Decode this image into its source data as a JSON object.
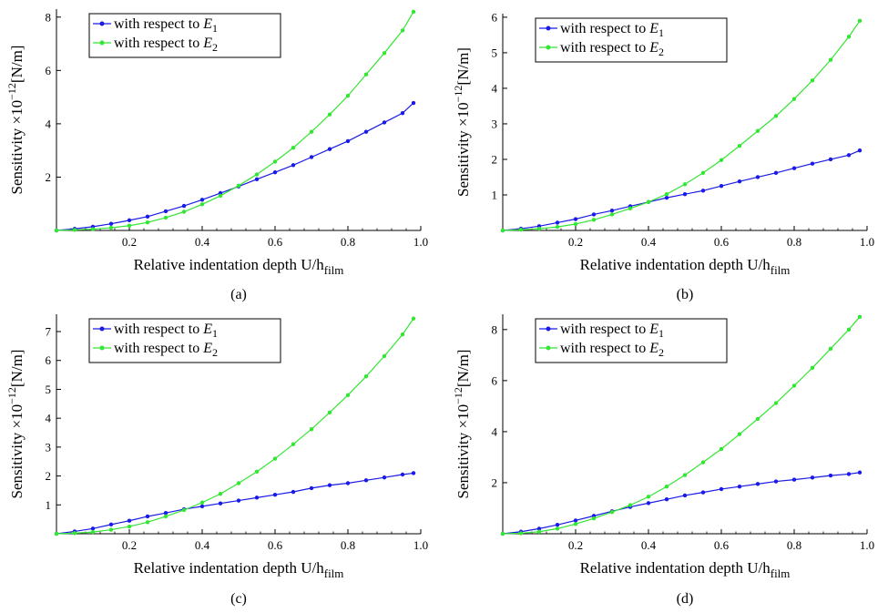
{
  "chart_data": [
    {
      "type": "line",
      "panel": "a",
      "caption": "(a)",
      "xlabel_main": "Relative indentation depth U/h",
      "xlabel_sub": "film",
      "ylabel_pre": "Sensitivity  ×10",
      "ylabel_exp": "−12",
      "ylabel_unit": "[N/m]",
      "xlim": [
        0,
        1.0
      ],
      "ylim": [
        0,
        8.3
      ],
      "xticks": [
        0.2,
        0.4,
        0.6,
        0.8,
        1.0
      ],
      "xtick_labels": [
        "0.2",
        "0.4",
        "0.6",
        "0.8",
        "1.0"
      ],
      "yticks": [
        2,
        4,
        6,
        8
      ],
      "ytick_labels": [
        "2",
        "4",
        "6",
        "8"
      ],
      "legend_position": "top-left",
      "x": [
        0.0,
        0.05,
        0.1,
        0.15,
        0.2,
        0.25,
        0.3,
        0.35,
        0.4,
        0.45,
        0.5,
        0.55,
        0.6,
        0.65,
        0.7,
        0.75,
        0.8,
        0.85,
        0.9,
        0.95,
        0.98
      ],
      "series": [
        {
          "name_main": "with respect to ",
          "name_var": "E",
          "name_sub": "1",
          "color": "#1a1ae6",
          "values": [
            0.0,
            0.06,
            0.14,
            0.25,
            0.38,
            0.52,
            0.72,
            0.92,
            1.15,
            1.4,
            1.65,
            1.92,
            2.18,
            2.45,
            2.75,
            3.05,
            3.35,
            3.7,
            4.05,
            4.4,
            4.78
          ]
        },
        {
          "name_main": "with respect to ",
          "name_var": "E",
          "name_sub": "2",
          "color": "#33e633",
          "values": [
            0.0,
            0.02,
            0.05,
            0.1,
            0.18,
            0.3,
            0.48,
            0.7,
            0.98,
            1.3,
            1.68,
            2.1,
            2.58,
            3.1,
            3.7,
            4.35,
            5.05,
            5.85,
            6.65,
            7.5,
            8.2
          ]
        }
      ]
    },
    {
      "type": "line",
      "panel": "b",
      "caption": "(b)",
      "xlabel_main": "Relative indentation depth U/h",
      "xlabel_sub": "film",
      "ylabel_pre": "Sensitivity  ×10",
      "ylabel_exp": "−12",
      "ylabel_unit": "[N/m]",
      "xlim": [
        0,
        1.0
      ],
      "ylim": [
        0,
        6.1
      ],
      "xticks": [
        0.2,
        0.4,
        0.6,
        0.8,
        1.0
      ],
      "xtick_labels": [
        "0.2",
        "0.4",
        "0.6",
        "0.8",
        "1.0"
      ],
      "yticks": [
        1,
        2,
        3,
        4,
        5,
        6
      ],
      "ytick_labels": [
        "1",
        "2",
        "3",
        "4",
        "5",
        "6"
      ],
      "legend_position": "top-left",
      "x": [
        0.0,
        0.05,
        0.1,
        0.15,
        0.2,
        0.25,
        0.3,
        0.35,
        0.4,
        0.45,
        0.5,
        0.55,
        0.6,
        0.65,
        0.7,
        0.75,
        0.8,
        0.85,
        0.9,
        0.95,
        0.98
      ],
      "series": [
        {
          "name_main": "with respect to ",
          "name_var": "E",
          "name_sub": "1",
          "color": "#1a1ae6",
          "values": [
            0.0,
            0.05,
            0.12,
            0.22,
            0.32,
            0.45,
            0.56,
            0.68,
            0.8,
            0.92,
            1.02,
            1.12,
            1.25,
            1.38,
            1.5,
            1.62,
            1.75,
            1.88,
            2.0,
            2.12,
            2.25
          ]
        },
        {
          "name_main": "with respect to ",
          "name_var": "E",
          "name_sub": "2",
          "color": "#33e633",
          "values": [
            0.0,
            0.02,
            0.05,
            0.1,
            0.18,
            0.3,
            0.45,
            0.62,
            0.8,
            1.02,
            1.3,
            1.62,
            1.98,
            2.38,
            2.8,
            3.22,
            3.7,
            4.22,
            4.8,
            5.45,
            5.9
          ]
        }
      ]
    },
    {
      "type": "line",
      "panel": "c",
      "caption": "(c)",
      "xlabel_main": "Relative indentation depth U/h",
      "xlabel_sub": "film",
      "ylabel_pre": "Sensitivity  ×10",
      "ylabel_exp": "−12",
      "ylabel_unit": "[N/m]",
      "xlim": [
        0,
        1.0
      ],
      "ylim": [
        0,
        7.6
      ],
      "xticks": [
        0.2,
        0.4,
        0.6,
        0.8,
        1.0
      ],
      "xtick_labels": [
        "0.2",
        "0.4",
        "0.6",
        "0.8",
        "1.0"
      ],
      "yticks": [
        1,
        2,
        3,
        4,
        5,
        6,
        7
      ],
      "ytick_labels": [
        "1",
        "2",
        "3",
        "4",
        "5",
        "6",
        "7"
      ],
      "legend_position": "top-left",
      "x": [
        0.0,
        0.05,
        0.1,
        0.15,
        0.2,
        0.25,
        0.3,
        0.35,
        0.4,
        0.45,
        0.5,
        0.55,
        0.6,
        0.65,
        0.7,
        0.75,
        0.8,
        0.85,
        0.9,
        0.95,
        0.98
      ],
      "series": [
        {
          "name_main": "with respect to ",
          "name_var": "E",
          "name_sub": "1",
          "color": "#1a1ae6",
          "values": [
            0.0,
            0.08,
            0.18,
            0.32,
            0.45,
            0.6,
            0.72,
            0.85,
            0.95,
            1.05,
            1.15,
            1.25,
            1.35,
            1.45,
            1.58,
            1.68,
            1.75,
            1.85,
            1.95,
            2.05,
            2.1
          ]
        },
        {
          "name_main": "with respect to ",
          "name_var": "E",
          "name_sub": "2",
          "color": "#33e633",
          "values": [
            0.0,
            0.02,
            0.06,
            0.14,
            0.25,
            0.4,
            0.6,
            0.82,
            1.08,
            1.38,
            1.75,
            2.15,
            2.6,
            3.1,
            3.62,
            4.2,
            4.8,
            5.45,
            6.15,
            6.9,
            7.45
          ]
        }
      ]
    },
    {
      "type": "line",
      "panel": "d",
      "caption": "(d)",
      "xlabel_main": "Relative indentation depth U/h",
      "xlabel_sub": "film",
      "ylabel_pre": "Sensitivity  ×10",
      "ylabel_exp": "−12",
      "ylabel_unit": "[N/m]",
      "xlim": [
        0,
        1.0
      ],
      "ylim": [
        0,
        8.6
      ],
      "xticks": [
        0.2,
        0.4,
        0.6,
        0.8,
        1.0
      ],
      "xtick_labels": [
        "0.2",
        "0.4",
        "0.6",
        "0.8",
        "1.0"
      ],
      "yticks": [
        2,
        4,
        6,
        8
      ],
      "ytick_labels": [
        "2",
        "4",
        "6",
        "8"
      ],
      "legend_position": "top-left",
      "x": [
        0.0,
        0.05,
        0.1,
        0.15,
        0.2,
        0.25,
        0.3,
        0.35,
        0.4,
        0.45,
        0.5,
        0.55,
        0.6,
        0.65,
        0.7,
        0.75,
        0.8,
        0.85,
        0.9,
        0.95,
        0.98
      ],
      "series": [
        {
          "name_main": "with respect to ",
          "name_var": "E",
          "name_sub": "1",
          "color": "#1a1ae6",
          "values": [
            0.0,
            0.08,
            0.2,
            0.35,
            0.52,
            0.7,
            0.88,
            1.05,
            1.2,
            1.35,
            1.5,
            1.62,
            1.75,
            1.85,
            1.95,
            2.05,
            2.12,
            2.2,
            2.28,
            2.34,
            2.4
          ]
        },
        {
          "name_main": "with respect to ",
          "name_var": "E",
          "name_sub": "2",
          "color": "#33e633",
          "values": [
            0.0,
            0.02,
            0.08,
            0.2,
            0.38,
            0.6,
            0.85,
            1.12,
            1.45,
            1.85,
            2.3,
            2.8,
            3.32,
            3.9,
            4.5,
            5.12,
            5.8,
            6.5,
            7.25,
            8.0,
            8.5
          ]
        }
      ]
    }
  ]
}
